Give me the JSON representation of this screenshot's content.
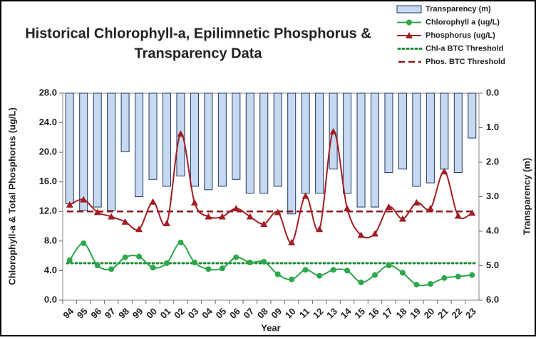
{
  "chart_data": {
    "type": "bar-line",
    "title": [
      "Historical Chlorophyll-a, Epilimnetic Phosphorus &",
      "Transparency Data"
    ],
    "x_label": "Year",
    "y_label": "Chlorophyll-a & Total Phosphorus (ug/L)",
    "y2_label": "Transparency (m)",
    "categories": [
      "94",
      "95",
      "96",
      "97",
      "98",
      "99",
      "00",
      "01",
      "02",
      "03",
      "04",
      "05",
      "06",
      "07",
      "08",
      "09",
      "10",
      "11",
      "12",
      "13",
      "14",
      "15",
      "16",
      "17",
      "18",
      "19",
      "20",
      "21",
      "22",
      "23"
    ],
    "ylim": [
      0,
      28
    ],
    "yticks": [
      {
        "value": 0,
        "label": "0.0"
      },
      {
        "value": 4,
        "label": "4.0"
      },
      {
        "value": 8,
        "label": "8.0"
      },
      {
        "value": 12,
        "label": "12.0"
      },
      {
        "value": 16,
        "label": "16.0"
      },
      {
        "value": 20,
        "label": "20.0"
      },
      {
        "value": 24,
        "label": "24.0"
      },
      {
        "value": 28,
        "label": "28.0"
      }
    ],
    "y2lim": [
      6,
      0
    ],
    "y2ticks": [
      {
        "value": 0,
        "label": "0.0"
      },
      {
        "value": 1,
        "label": "1.0"
      },
      {
        "value": 2,
        "label": "2.0"
      },
      {
        "value": 3,
        "label": "3.0"
      },
      {
        "value": 4,
        "label": "4.0"
      },
      {
        "value": 5,
        "label": "5.0"
      },
      {
        "value": 6,
        "label": "6.0"
      }
    ],
    "series": [
      {
        "name": "Transparency (m)",
        "kind": "bar",
        "axis": "y2",
        "color": "#c6d9f0",
        "edge": "#1f3864",
        "values": [
          3.2,
          3.4,
          3.3,
          3.4,
          1.7,
          3.0,
          2.5,
          2.7,
          2.4,
          2.7,
          2.8,
          2.7,
          2.5,
          2.9,
          2.9,
          2.7,
          3.5,
          2.9,
          2.9,
          2.2,
          2.9,
          3.3,
          3.3,
          2.3,
          2.2,
          2.7,
          2.6,
          2.2,
          2.3,
          1.3
        ]
      },
      {
        "name": "Chlorophyll a (ug/L)",
        "kind": "line",
        "marker": "circle",
        "color": "#2ca74a",
        "values": [
          5.4,
          7.7,
          4.7,
          4.2,
          5.8,
          5.9,
          4.4,
          5.0,
          7.8,
          5.1,
          4.2,
          4.3,
          5.8,
          5.1,
          5.2,
          3.5,
          2.8,
          4.1,
          3.3,
          4.1,
          4.0,
          2.4,
          3.4,
          4.7,
          3.7,
          2.1,
          2.2,
          3.0,
          3.2,
          3.4
        ]
      },
      {
        "name": "Phosphorus (ug/L)",
        "kind": "line",
        "marker": "triangle",
        "color": "#a11d21",
        "values": [
          12.9,
          13.6,
          11.9,
          11.3,
          10.6,
          9.6,
          13.3,
          10.4,
          22.5,
          13.2,
          11.3,
          11.3,
          12.4,
          11.3,
          10.3,
          11.9,
          7.8,
          14.1,
          9.6,
          22.8,
          12.4,
          8.8,
          9.0,
          12.6,
          11.0,
          13.2,
          12.4,
          17.4,
          11.4,
          11.8
        ]
      }
    ],
    "thresholds": [
      {
        "name": "Chl-a BTC Threshold",
        "value": 5.0,
        "color": "#1e8a34",
        "dash": "dotted"
      },
      {
        "name": "Phos. BTC Threshold",
        "value": 12.0,
        "color": "#8b1a1a",
        "dash": "dashed"
      }
    ]
  }
}
